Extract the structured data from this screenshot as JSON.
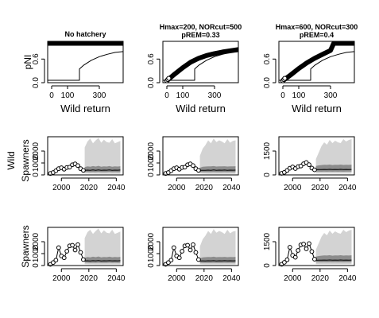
{
  "figure": {
    "left_ylabels": {
      "row1": "pNI",
      "row2_line1": "Wild",
      "row2_line2": "Spawners",
      "row3": "Spawners"
    }
  },
  "chart_data": [
    {
      "type": "line",
      "panel": "pni-no-hatchery",
      "title": "No hatchery",
      "title2": "",
      "xlabel": "Wild return",
      "ylabel": "pNI",
      "xlim": [
        -25,
        450
      ],
      "ylim": [
        0,
        1.05
      ],
      "xticks": [
        0,
        100,
        300
      ],
      "yticks": [
        0.0,
        0.6
      ],
      "series": [
        {
          "style": "thick",
          "x": [
            -25,
            450
          ],
          "y": [
            1.0,
            1.0
          ]
        },
        {
          "style": "thin",
          "x": [
            -25,
            175,
            175,
            200,
            250,
            300,
            350,
            400,
            450
          ],
          "y": [
            0.06,
            0.06,
            0.35,
            0.44,
            0.57,
            0.66,
            0.72,
            0.77,
            0.79
          ]
        }
      ]
    },
    {
      "type": "line",
      "panel": "pni-hmax200",
      "title": "Hmax=200, NORcut=500",
      "title2": "pREM=0.33",
      "xlabel": "Wild return",
      "ylabel": "",
      "xlim": [
        -25,
        450
      ],
      "ylim": [
        0,
        1.05
      ],
      "xticks": [
        0,
        100,
        300
      ],
      "yticks": [
        0.0,
        0.6
      ],
      "series": [
        {
          "style": "thick",
          "x": [
            0,
            50,
            100,
            150,
            200,
            250,
            300,
            350,
            400,
            450
          ],
          "y": [
            0.05,
            0.22,
            0.38,
            0.52,
            0.62,
            0.69,
            0.74,
            0.78,
            0.81,
            0.84
          ]
        },
        {
          "style": "thin",
          "x": [
            -25,
            175,
            175,
            200,
            250,
            300,
            350,
            400,
            450
          ],
          "y": [
            0.06,
            0.06,
            0.35,
            0.44,
            0.57,
            0.66,
            0.72,
            0.77,
            0.79
          ]
        }
      ]
    },
    {
      "type": "line",
      "panel": "pni-hmax600",
      "title": "Hmax=600, NORcut=300",
      "title2": "pREM=0.4",
      "xlabel": "Wild return",
      "ylabel": "",
      "xlim": [
        -25,
        450
      ],
      "ylim": [
        0,
        1.05
      ],
      "xticks": [
        0,
        100,
        300
      ],
      "yticks": [
        0.0,
        0.6
      ],
      "series": [
        {
          "style": "thick",
          "x": [
            0,
            50,
            100,
            150,
            200,
            250,
            300,
            320,
            450
          ],
          "y": [
            0.05,
            0.2,
            0.36,
            0.5,
            0.62,
            0.72,
            0.82,
            1.0,
            1.0
          ]
        },
        {
          "style": "thin",
          "x": [
            -25,
            175,
            175,
            200,
            250,
            300,
            350,
            400,
            450
          ],
          "y": [
            0.06,
            0.06,
            0.35,
            0.44,
            0.57,
            0.66,
            0.72,
            0.77,
            0.79
          ]
        }
      ]
    },
    {
      "type": "area",
      "panel": "wild-spawners-no-hatchery",
      "title": "",
      "xlabel": "",
      "ylabel": "Wild Spawners",
      "xlim": [
        1990,
        2045
      ],
      "ylim": [
        0,
        3200
      ],
      "xticks": [
        2000,
        2020,
        2040
      ],
      "yticks": [
        0,
        1000,
        2000
      ],
      "obs_x": [
        1992,
        1994,
        1996,
        1998,
        2000,
        2002,
        2004,
        2006,
        2008,
        2010,
        2012,
        2014,
        2016
      ],
      "obs_y": [
        120,
        200,
        350,
        520,
        600,
        480,
        620,
        650,
        850,
        920,
        780,
        520,
        380
      ],
      "proj_x": [
        2017,
        2019,
        2021,
        2023,
        2025,
        2027,
        2029,
        2031,
        2033,
        2035,
        2037,
        2039,
        2041,
        2043
      ],
      "outer_hi": [
        2300,
        2800,
        3050,
        2650,
        2900,
        3100,
        2700,
        2950,
        2750,
        2700,
        3000,
        2650,
        2750,
        2850
      ],
      "outer_lo": [
        120,
        110,
        100,
        100,
        95,
        95,
        90,
        90,
        90,
        90,
        90,
        90,
        90,
        90
      ],
      "inner_hi": [
        650,
        720,
        680,
        740,
        700,
        760,
        680,
        720,
        700,
        740,
        690,
        720,
        700,
        730
      ],
      "inner_lo": [
        250,
        240,
        230,
        235,
        230,
        240,
        225,
        230,
        230,
        240,
        230,
        235,
        230,
        235
      ],
      "median": [
        390,
        400,
        380,
        410,
        390,
        420,
        380,
        400,
        395,
        410,
        390,
        400,
        395,
        405
      ]
    },
    {
      "type": "area",
      "panel": "wild-spawners-hmax200",
      "title": "",
      "xlabel": "",
      "ylabel": "",
      "xlim": [
        1990,
        2045
      ],
      "ylim": [
        0,
        3200
      ],
      "xticks": [
        2000,
        2020,
        2040
      ],
      "yticks": [
        0,
        1000,
        2000
      ],
      "obs_x": [
        1992,
        1994,
        1996,
        1998,
        2000,
        2002,
        2004,
        2006,
        2008,
        2010,
        2012,
        2014,
        2016
      ],
      "obs_y": [
        120,
        200,
        350,
        520,
        600,
        480,
        620,
        650,
        850,
        920,
        780,
        520,
        380
      ],
      "proj_x": [
        2017,
        2019,
        2021,
        2023,
        2025,
        2027,
        2029,
        2031,
        2033,
        2035,
        2037,
        2039,
        2041,
        2043
      ],
      "outer_hi": [
        1600,
        2200,
        2500,
        2900,
        2650,
        3050,
        2750,
        2900,
        2800,
        2650,
        3000,
        2700,
        2850,
        2900
      ],
      "outer_lo": [
        110,
        100,
        95,
        90,
        90,
        90,
        90,
        90,
        90,
        90,
        90,
        90,
        90,
        90
      ],
      "inner_hi": [
        600,
        680,
        700,
        720,
        710,
        740,
        700,
        720,
        710,
        730,
        700,
        720,
        710,
        725
      ],
      "inner_lo": [
        240,
        230,
        225,
        230,
        230,
        235,
        225,
        230,
        230,
        235,
        228,
        232,
        230,
        234
      ],
      "median": [
        380,
        390,
        385,
        400,
        390,
        410,
        385,
        400,
        395,
        405,
        390,
        400,
        395,
        402
      ]
    },
    {
      "type": "area",
      "panel": "wild-spawners-hmax600",
      "title": "",
      "xlabel": "",
      "ylabel": "",
      "xlim": [
        1990,
        2045
      ],
      "ylim": [
        0,
        2400
      ],
      "xticks": [
        2000,
        2020,
        2040
      ],
      "yticks": [
        0,
        1500
      ],
      "obs_x": [
        1992,
        1994,
        1996,
        1998,
        2000,
        2002,
        2004,
        2006,
        2008,
        2010,
        2012,
        2014,
        2016
      ],
      "obs_y": [
        100,
        160,
        280,
        420,
        500,
        400,
        520,
        560,
        700,
        780,
        640,
        430,
        320
      ],
      "proj_x": [
        2017,
        2019,
        2021,
        2023,
        2025,
        2027,
        2029,
        2031,
        2033,
        2035,
        2037,
        2039,
        2041,
        2043
      ],
      "outer_hi": [
        1000,
        1400,
        1800,
        2050,
        1900,
        2200,
        2000,
        2150,
        2050,
        2000,
        2250,
        2100,
        2200,
        2250
      ],
      "outer_lo": [
        90,
        85,
        80,
        80,
        80,
        80,
        80,
        80,
        80,
        80,
        80,
        80,
        80,
        80
      ],
      "inner_hi": [
        560,
        600,
        620,
        640,
        630,
        650,
        620,
        640,
        630,
        650,
        625,
        640,
        632,
        645
      ],
      "inner_lo": [
        210,
        205,
        200,
        204,
        202,
        206,
        200,
        204,
        202,
        206,
        201,
        204,
        203,
        205
      ],
      "median": [
        330,
        340,
        335,
        345,
        338,
        350,
        335,
        345,
        340,
        348,
        336,
        344,
        340,
        346
      ]
    },
    {
      "type": "area",
      "panel": "spawners-no-hatchery",
      "title": "",
      "xlabel": "",
      "ylabel": "Spawners",
      "xlim": [
        1990,
        2045
      ],
      "ylim": [
        0,
        3200
      ],
      "xticks": [
        2000,
        2020,
        2040
      ],
      "yticks": [
        0,
        1000,
        2000
      ],
      "obs_x": [
        1992,
        1994,
        1996,
        1998,
        2000,
        2002,
        2004,
        2006,
        2008,
        2010,
        2012,
        2014,
        2016
      ],
      "obs_y": [
        100,
        250,
        450,
        1500,
        800,
        650,
        1200,
        1650,
        1700,
        1300,
        1750,
        1100,
        500
      ],
      "proj_x": [
        2017,
        2019,
        2021,
        2023,
        2025,
        2027,
        2029,
        2031,
        2033,
        2035,
        2037,
        2039,
        2041,
        2043
      ],
      "outer_hi": [
        2300,
        2800,
        3000,
        2650,
        2900,
        3100,
        2700,
        2950,
        2750,
        2700,
        3000,
        2650,
        2750,
        2850
      ],
      "outer_lo": [
        120,
        110,
        100,
        100,
        95,
        95,
        90,
        90,
        90,
        90,
        90,
        90,
        90,
        90
      ],
      "inner_hi": [
        650,
        720,
        680,
        740,
        700,
        760,
        680,
        720,
        700,
        740,
        690,
        720,
        700,
        730
      ],
      "inner_lo": [
        250,
        240,
        230,
        235,
        230,
        240,
        225,
        230,
        230,
        240,
        230,
        235,
        230,
        235
      ],
      "median": [
        390,
        400,
        380,
        410,
        390,
        420,
        380,
        400,
        395,
        410,
        390,
        400,
        395,
        405
      ]
    },
    {
      "type": "area",
      "panel": "spawners-hmax200",
      "title": "",
      "xlabel": "",
      "ylabel": "",
      "xlim": [
        1990,
        2045
      ],
      "ylim": [
        0,
        3200
      ],
      "xticks": [
        2000,
        2020,
        2040
      ],
      "yticks": [
        0,
        1000,
        2000
      ],
      "obs_x": [
        1992,
        1994,
        1996,
        1998,
        2000,
        2002,
        2004,
        2006,
        2008,
        2010,
        2012,
        2014,
        2016
      ],
      "obs_y": [
        100,
        250,
        450,
        1500,
        800,
        650,
        1200,
        1650,
        1700,
        1300,
        1750,
        1100,
        500
      ],
      "proj_x": [
        2017,
        2019,
        2021,
        2023,
        2025,
        2027,
        2029,
        2031,
        2033,
        2035,
        2037,
        2039,
        2041,
        2043
      ],
      "outer_hi": [
        1600,
        2200,
        2500,
        2900,
        2650,
        3050,
        2750,
        2900,
        2800,
        2650,
        3000,
        2700,
        2850,
        2900
      ],
      "outer_lo": [
        110,
        100,
        95,
        90,
        90,
        90,
        90,
        90,
        90,
        90,
        90,
        90,
        90,
        90
      ],
      "inner_hi": [
        600,
        680,
        700,
        720,
        710,
        740,
        700,
        720,
        710,
        730,
        700,
        720,
        710,
        725
      ],
      "inner_lo": [
        240,
        230,
        225,
        230,
        230,
        235,
        225,
        230,
        230,
        235,
        228,
        232,
        230,
        234
      ],
      "median": [
        380,
        390,
        385,
        400,
        390,
        410,
        385,
        400,
        395,
        405,
        390,
        400,
        395,
        402
      ]
    },
    {
      "type": "area",
      "panel": "spawners-hmax600",
      "title": "",
      "xlabel": "",
      "ylabel": "",
      "xlim": [
        1990,
        2045
      ],
      "ylim": [
        0,
        2400
      ],
      "xticks": [
        2000,
        2020,
        2040
      ],
      "yticks": [
        0,
        1500
      ],
      "obs_x": [
        1992,
        1994,
        1996,
        1998,
        2000,
        2002,
        2004,
        2006,
        2008,
        2010,
        2012,
        2014,
        2016
      ],
      "obs_y": [
        80,
        200,
        360,
        1150,
        640,
        520,
        950,
        1300,
        1350,
        1050,
        1380,
        880,
        400
      ],
      "proj_x": [
        2017,
        2019,
        2021,
        2023,
        2025,
        2027,
        2029,
        2031,
        2033,
        2035,
        2037,
        2039,
        2041,
        2043
      ],
      "outer_hi": [
        1000,
        1400,
        1800,
        2050,
        1900,
        2200,
        2000,
        2150,
        2050,
        2000,
        2250,
        2100,
        2200,
        2250
      ],
      "outer_lo": [
        90,
        85,
        80,
        80,
        80,
        80,
        80,
        80,
        80,
        80,
        80,
        80,
        80,
        80
      ],
      "inner_hi": [
        560,
        600,
        620,
        640,
        630,
        650,
        620,
        640,
        630,
        650,
        625,
        640,
        632,
        645
      ],
      "inner_lo": [
        210,
        205,
        200,
        204,
        202,
        206,
        200,
        204,
        202,
        206,
        201,
        204,
        203,
        205
      ],
      "median": [
        330,
        340,
        335,
        345,
        338,
        350,
        335,
        345,
        340,
        348,
        336,
        344,
        340,
        346
      ]
    }
  ]
}
